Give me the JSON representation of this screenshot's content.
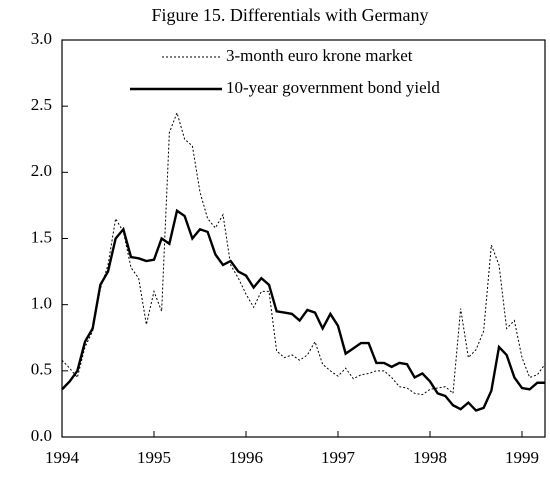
{
  "chart_data": {
    "type": "line",
    "title": "Figure 15. Differentials with Germany",
    "x": [
      1994,
      1994.083,
      1994.167,
      1994.25,
      1994.333,
      1994.417,
      1994.5,
      1994.583,
      1994.667,
      1994.75,
      1994.833,
      1994.917,
      1995,
      1995.083,
      1995.167,
      1995.25,
      1995.333,
      1995.417,
      1995.5,
      1995.583,
      1995.667,
      1995.75,
      1995.833,
      1995.917,
      1996,
      1996.083,
      1996.167,
      1996.25,
      1996.333,
      1996.417,
      1996.5,
      1996.583,
      1996.667,
      1996.75,
      1996.833,
      1996.917,
      1997,
      1997.083,
      1997.167,
      1997.25,
      1997.333,
      1997.417,
      1997.5,
      1997.583,
      1997.667,
      1997.75,
      1997.833,
      1997.917,
      1998,
      1998.083,
      1998.167,
      1998.25,
      1998.333,
      1998.417,
      1998.5,
      1998.583,
      1998.667,
      1998.75,
      1998.833,
      1998.917,
      1999,
      1999.083,
      1999.167,
      1999.25
    ],
    "series": [
      {
        "name": "3-month euro krone market",
        "color": "#000000",
        "style": "dotted",
        "values": [
          0.58,
          0.52,
          0.45,
          0.68,
          0.8,
          1.12,
          1.3,
          1.65,
          1.55,
          1.28,
          1.2,
          0.85,
          1.1,
          0.95,
          2.3,
          2.45,
          2.25,
          2.2,
          1.85,
          1.65,
          1.58,
          1.68,
          1.3,
          1.2,
          1.08,
          0.98,
          1.1,
          1.1,
          0.65,
          0.6,
          0.62,
          0.58,
          0.62,
          0.72,
          0.55,
          0.5,
          0.46,
          0.52,
          0.44,
          0.47,
          0.48,
          0.5,
          0.5,
          0.45,
          0.38,
          0.37,
          0.33,
          0.32,
          0.36,
          0.37,
          0.38,
          0.33,
          0.97,
          0.6,
          0.66,
          0.8,
          1.45,
          1.3,
          0.82,
          0.88,
          0.6,
          0.45,
          0.47,
          0.55
        ]
      },
      {
        "name": "10-year government bond yield",
        "color": "#000000",
        "style": "solid",
        "values": [
          0.36,
          0.42,
          0.5,
          0.72,
          0.82,
          1.15,
          1.25,
          1.5,
          1.57,
          1.36,
          1.35,
          1.33,
          1.34,
          1.5,
          1.46,
          1.71,
          1.67,
          1.5,
          1.57,
          1.55,
          1.38,
          1.3,
          1.33,
          1.25,
          1.22,
          1.13,
          1.2,
          1.15,
          0.95,
          0.94,
          0.93,
          0.88,
          0.96,
          0.94,
          0.82,
          0.93,
          0.84,
          0.63,
          0.67,
          0.71,
          0.71,
          0.56,
          0.56,
          0.53,
          0.56,
          0.55,
          0.45,
          0.48,
          0.42,
          0.33,
          0.31,
          0.24,
          0.21,
          0.26,
          0.2,
          0.22,
          0.35,
          0.68,
          0.62,
          0.45,
          0.37,
          0.36,
          0.41,
          0.41
        ]
      }
    ],
    "xlim": [
      1994,
      1999.25
    ],
    "xticks": [
      1994,
      1995,
      1996,
      1997,
      1998,
      1999
    ],
    "ylim": [
      0,
      3
    ],
    "yticks": [
      {
        "value": 0,
        "label": "0.0"
      },
      0.5,
      {
        "value": 1,
        "label": "1.0"
      },
      1.5,
      {
        "value": 2,
        "label": "2.0"
      },
      2.5,
      {
        "value": 3,
        "label": "3.0"
      }
    ],
    "legend": "top"
  }
}
